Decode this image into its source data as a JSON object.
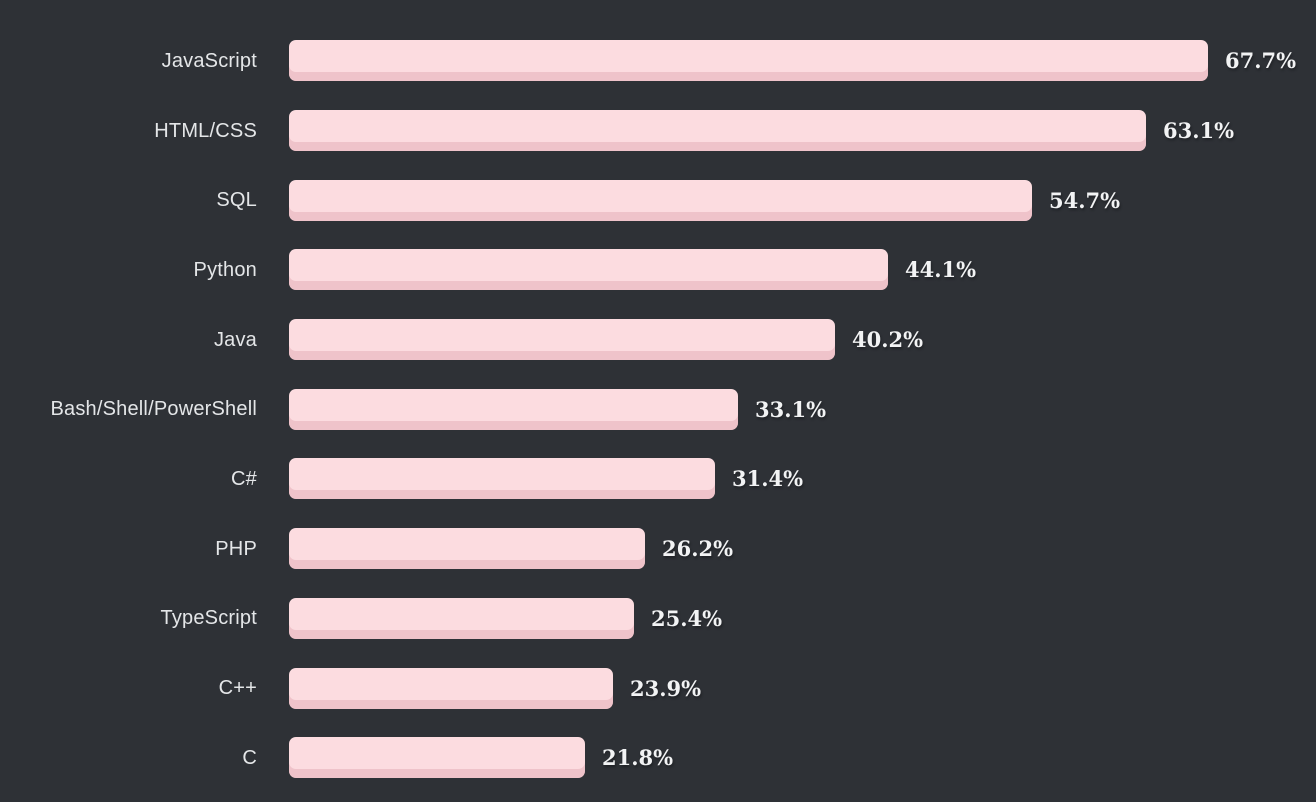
{
  "chart_data": {
    "type": "bar",
    "orientation": "horizontal",
    "title": "",
    "xlabel": "",
    "ylabel": "",
    "grid": false,
    "legend": "none",
    "xlim": [
      0,
      72
    ],
    "value_suffix": "%",
    "categories": [
      "JavaScript",
      "HTML/CSS",
      "SQL",
      "Python",
      "Java",
      "Bash/Shell/PowerShell",
      "C#",
      "PHP",
      "TypeScript",
      "C++",
      "C"
    ],
    "values": [
      67.7,
      63.1,
      54.7,
      44.1,
      40.2,
      33.1,
      31.4,
      26.2,
      25.4,
      23.9,
      21.8
    ],
    "value_labels": [
      "67.7%",
      "63.1%",
      "54.7%",
      "44.1%",
      "40.2%",
      "33.1%",
      "31.4%",
      "26.2%",
      "25.4%",
      "23.9%",
      "21.8%"
    ],
    "colors": {
      "background": "#2e3136",
      "bar_fill": "#fcdce0",
      "bar_bottom_edge": "#f2c5cc",
      "category_label": "#e4e6e8",
      "value_label": "#f2f3f4"
    }
  }
}
